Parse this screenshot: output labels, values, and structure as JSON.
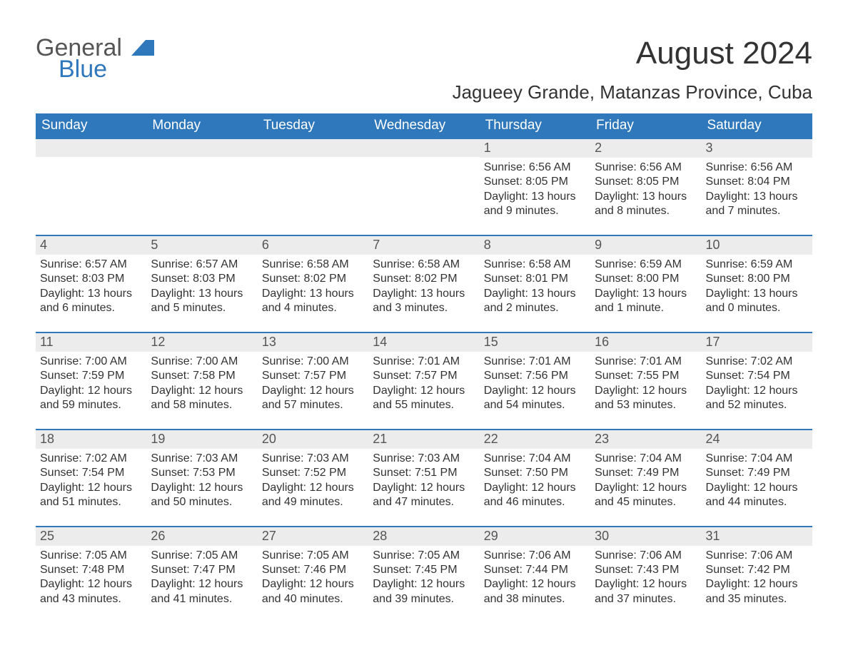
{
  "brand": {
    "general": "General",
    "blue": "Blue",
    "logo_color": "#2f78bb",
    "text_color": "#555555"
  },
  "header": {
    "month_title": "August 2024",
    "location": "Jagueey Grande, Matanzas Province, Cuba"
  },
  "calendar": {
    "header_bg": "#2f78bb",
    "header_text_color": "#ffffff",
    "day_bar_bg": "#ececec",
    "day_bar_border": "#2f78bb",
    "day_text_color": "#333333",
    "day_num_color": "#555555",
    "day_headers": [
      "Sunday",
      "Monday",
      "Tuesday",
      "Wednesday",
      "Thursday",
      "Friday",
      "Saturday"
    ],
    "leading_blanks": 4,
    "days": [
      {
        "num": "1",
        "sunrise": "6:56 AM",
        "sunset": "8:05 PM",
        "daylight": "13 hours and 9 minutes."
      },
      {
        "num": "2",
        "sunrise": "6:56 AM",
        "sunset": "8:05 PM",
        "daylight": "13 hours and 8 minutes."
      },
      {
        "num": "3",
        "sunrise": "6:56 AM",
        "sunset": "8:04 PM",
        "daylight": "13 hours and 7 minutes."
      },
      {
        "num": "4",
        "sunrise": "6:57 AM",
        "sunset": "8:03 PM",
        "daylight": "13 hours and 6 minutes."
      },
      {
        "num": "5",
        "sunrise": "6:57 AM",
        "sunset": "8:03 PM",
        "daylight": "13 hours and 5 minutes."
      },
      {
        "num": "6",
        "sunrise": "6:58 AM",
        "sunset": "8:02 PM",
        "daylight": "13 hours and 4 minutes."
      },
      {
        "num": "7",
        "sunrise": "6:58 AM",
        "sunset": "8:02 PM",
        "daylight": "13 hours and 3 minutes."
      },
      {
        "num": "8",
        "sunrise": "6:58 AM",
        "sunset": "8:01 PM",
        "daylight": "13 hours and 2 minutes."
      },
      {
        "num": "9",
        "sunrise": "6:59 AM",
        "sunset": "8:00 PM",
        "daylight": "13 hours and 1 minute."
      },
      {
        "num": "10",
        "sunrise": "6:59 AM",
        "sunset": "8:00 PM",
        "daylight": "13 hours and 0 minutes."
      },
      {
        "num": "11",
        "sunrise": "7:00 AM",
        "sunset": "7:59 PM",
        "daylight": "12 hours and 59 minutes."
      },
      {
        "num": "12",
        "sunrise": "7:00 AM",
        "sunset": "7:58 PM",
        "daylight": "12 hours and 58 minutes."
      },
      {
        "num": "13",
        "sunrise": "7:00 AM",
        "sunset": "7:57 PM",
        "daylight": "12 hours and 57 minutes."
      },
      {
        "num": "14",
        "sunrise": "7:01 AM",
        "sunset": "7:57 PM",
        "daylight": "12 hours and 55 minutes."
      },
      {
        "num": "15",
        "sunrise": "7:01 AM",
        "sunset": "7:56 PM",
        "daylight": "12 hours and 54 minutes."
      },
      {
        "num": "16",
        "sunrise": "7:01 AM",
        "sunset": "7:55 PM",
        "daylight": "12 hours and 53 minutes."
      },
      {
        "num": "17",
        "sunrise": "7:02 AM",
        "sunset": "7:54 PM",
        "daylight": "12 hours and 52 minutes."
      },
      {
        "num": "18",
        "sunrise": "7:02 AM",
        "sunset": "7:54 PM",
        "daylight": "12 hours and 51 minutes."
      },
      {
        "num": "19",
        "sunrise": "7:03 AM",
        "sunset": "7:53 PM",
        "daylight": "12 hours and 50 minutes."
      },
      {
        "num": "20",
        "sunrise": "7:03 AM",
        "sunset": "7:52 PM",
        "daylight": "12 hours and 49 minutes."
      },
      {
        "num": "21",
        "sunrise": "7:03 AM",
        "sunset": "7:51 PM",
        "daylight": "12 hours and 47 minutes."
      },
      {
        "num": "22",
        "sunrise": "7:04 AM",
        "sunset": "7:50 PM",
        "daylight": "12 hours and 46 minutes."
      },
      {
        "num": "23",
        "sunrise": "7:04 AM",
        "sunset": "7:49 PM",
        "daylight": "12 hours and 45 minutes."
      },
      {
        "num": "24",
        "sunrise": "7:04 AM",
        "sunset": "7:49 PM",
        "daylight": "12 hours and 44 minutes."
      },
      {
        "num": "25",
        "sunrise": "7:05 AM",
        "sunset": "7:48 PM",
        "daylight": "12 hours and 43 minutes."
      },
      {
        "num": "26",
        "sunrise": "7:05 AM",
        "sunset": "7:47 PM",
        "daylight": "12 hours and 41 minutes."
      },
      {
        "num": "27",
        "sunrise": "7:05 AM",
        "sunset": "7:46 PM",
        "daylight": "12 hours and 40 minutes."
      },
      {
        "num": "28",
        "sunrise": "7:05 AM",
        "sunset": "7:45 PM",
        "daylight": "12 hours and 39 minutes."
      },
      {
        "num": "29",
        "sunrise": "7:06 AM",
        "sunset": "7:44 PM",
        "daylight": "12 hours and 38 minutes."
      },
      {
        "num": "30",
        "sunrise": "7:06 AM",
        "sunset": "7:43 PM",
        "daylight": "12 hours and 37 minutes."
      },
      {
        "num": "31",
        "sunrise": "7:06 AM",
        "sunset": "7:42 PM",
        "daylight": "12 hours and 35 minutes."
      }
    ],
    "labels": {
      "sunrise": "Sunrise:",
      "sunset": "Sunset:",
      "daylight": "Daylight:"
    }
  }
}
